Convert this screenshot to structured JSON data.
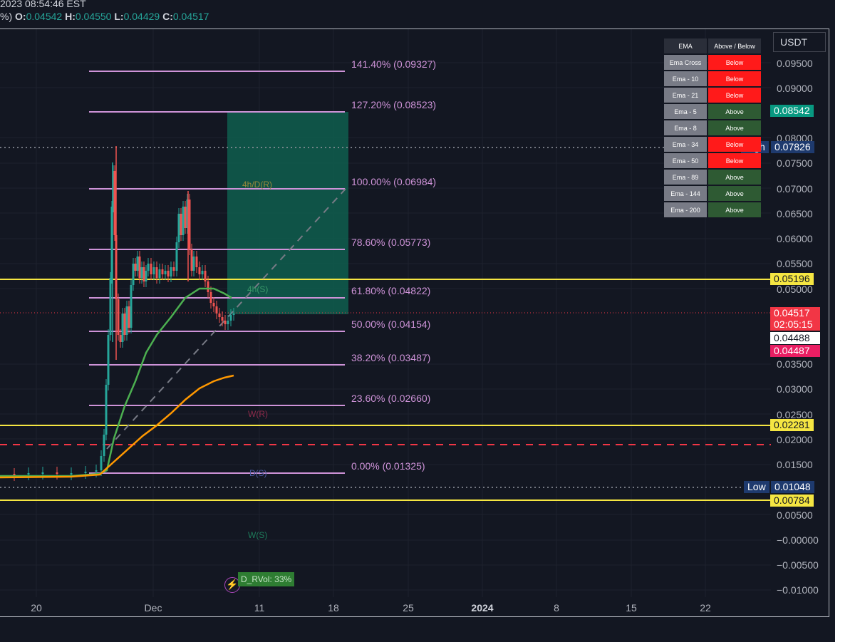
{
  "header": {
    "datetime": "2023 08:54:46 EST",
    "prefix": "%)",
    "ohlc": [
      {
        "label": "O:",
        "value": "0.04542"
      },
      {
        "label": "H:",
        "value": "0.04550"
      },
      {
        "label": "L:",
        "value": "0.04429"
      },
      {
        "label": "C:",
        "value": "0.04517"
      }
    ]
  },
  "currency": "USDT",
  "price_axis": [
    "0.09500",
    "0.09000",
    "0.08000",
    "0.07500",
    "0.07000",
    "0.06500",
    "0.06000",
    "0.05500",
    "0.05000",
    "0.03500",
    "0.03000",
    "0.02500",
    "0.02000",
    "0.01500",
    "0.00500",
    "−0.00000",
    "−0.00500",
    "−0.01000"
  ],
  "date_axis": [
    {
      "label": "20",
      "bold": false
    },
    {
      "label": "Dec",
      "bold": false
    },
    {
      "label": "11",
      "bold": false
    },
    {
      "label": "18",
      "bold": false
    },
    {
      "label": "25",
      "bold": false
    },
    {
      "label": "2024",
      "bold": true
    },
    {
      "label": "8",
      "bold": false
    },
    {
      "label": "15",
      "bold": false
    },
    {
      "label": "22",
      "bold": false
    }
  ],
  "fib_levels": [
    {
      "label": "141.40% (0.09327)"
    },
    {
      "label": "127.20% (0.08523)"
    },
    {
      "label": "100.00% (0.06984)"
    },
    {
      "label": "78.60% (0.05773)"
    },
    {
      "label": "61.80% (0.04822)"
    },
    {
      "label": "50.00% (0.04154)"
    },
    {
      "label": "38.20% (0.03487)"
    },
    {
      "label": "23.60% (0.02660)"
    },
    {
      "label": "0.00% (0.01325)"
    }
  ],
  "zone_labels": [
    {
      "text": "4h/D(R)",
      "color": "#9a8a3a"
    },
    {
      "text": "4h(S)",
      "color": "#3a9a6a"
    },
    {
      "text": "W(R)",
      "color": "#8a2a4a"
    },
    {
      "text": "D(S)",
      "color": "#4a5aa0"
    },
    {
      "text": "W(S)",
      "color": "#1e7a5a"
    }
  ],
  "price_badges": [
    {
      "text": "0.08542",
      "bg": "#089981",
      "fg": "#ffffff"
    },
    {
      "text": "0.05196",
      "bg": "#f5e642",
      "fg": "#131722"
    },
    {
      "text": "0.04517",
      "bg": "#f23645",
      "fg": "#ffffff"
    },
    {
      "text": "02:05:15",
      "bg": "#f23645",
      "fg": "#ffffff"
    },
    {
      "text": "0.04488",
      "bg": "#ffffff",
      "fg": "#131722"
    },
    {
      "text": "0.04487",
      "bg": "#e91e63",
      "fg": "#ffffff"
    },
    {
      "text": "0.02281",
      "bg": "#f5e642",
      "fg": "#131722"
    },
    {
      "text": "0.00784",
      "bg": "#f5e642",
      "fg": "#131722"
    }
  ],
  "high": {
    "label": "High",
    "value": "0.07826"
  },
  "low": {
    "label": "Low",
    "value": "0.01048"
  },
  "ema_table": {
    "headers": [
      "EMA",
      "Above / Below"
    ],
    "rows": [
      {
        "name": "Ema Cross",
        "status": "Below"
      },
      {
        "name": "Ema - 10",
        "status": "Below"
      },
      {
        "name": "Ema - 21",
        "status": "Below"
      },
      {
        "name": "Ema - 5",
        "status": "Above"
      },
      {
        "name": "Ema - 8",
        "status": "Above"
      },
      {
        "name": "Ema - 34",
        "status": "Below"
      },
      {
        "name": "Ema - 50",
        "status": "Below"
      },
      {
        "name": "Ema - 89",
        "status": "Above"
      },
      {
        "name": "Ema - 144",
        "status": "Above"
      },
      {
        "name": "Ema - 200",
        "status": "Above"
      }
    ],
    "colors": {
      "Below": "#ff1a1a",
      "Above": "#2e5a33"
    }
  },
  "rvol": "D_RVol: 33%",
  "bolt_icon": "⚡",
  "colors": {
    "fib": "#ce93d8",
    "support_resistance": "#f5e642",
    "ema_green": "#4caf50",
    "ema_orange": "#ff9800",
    "target_zone": "#0f5e4e",
    "dashed_red": "#f23645"
  }
}
